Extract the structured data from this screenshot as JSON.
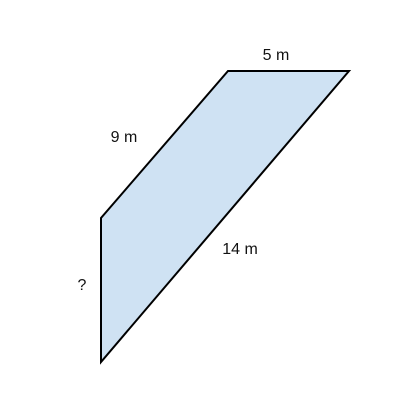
{
  "figure": {
    "shape": "quadrilateral",
    "fill_color": "#cfe2f3",
    "stroke_color": "#000000",
    "labels": {
      "top": "5 m",
      "upper_left": "9 m",
      "diagonal": "14 m",
      "left": "?"
    }
  }
}
